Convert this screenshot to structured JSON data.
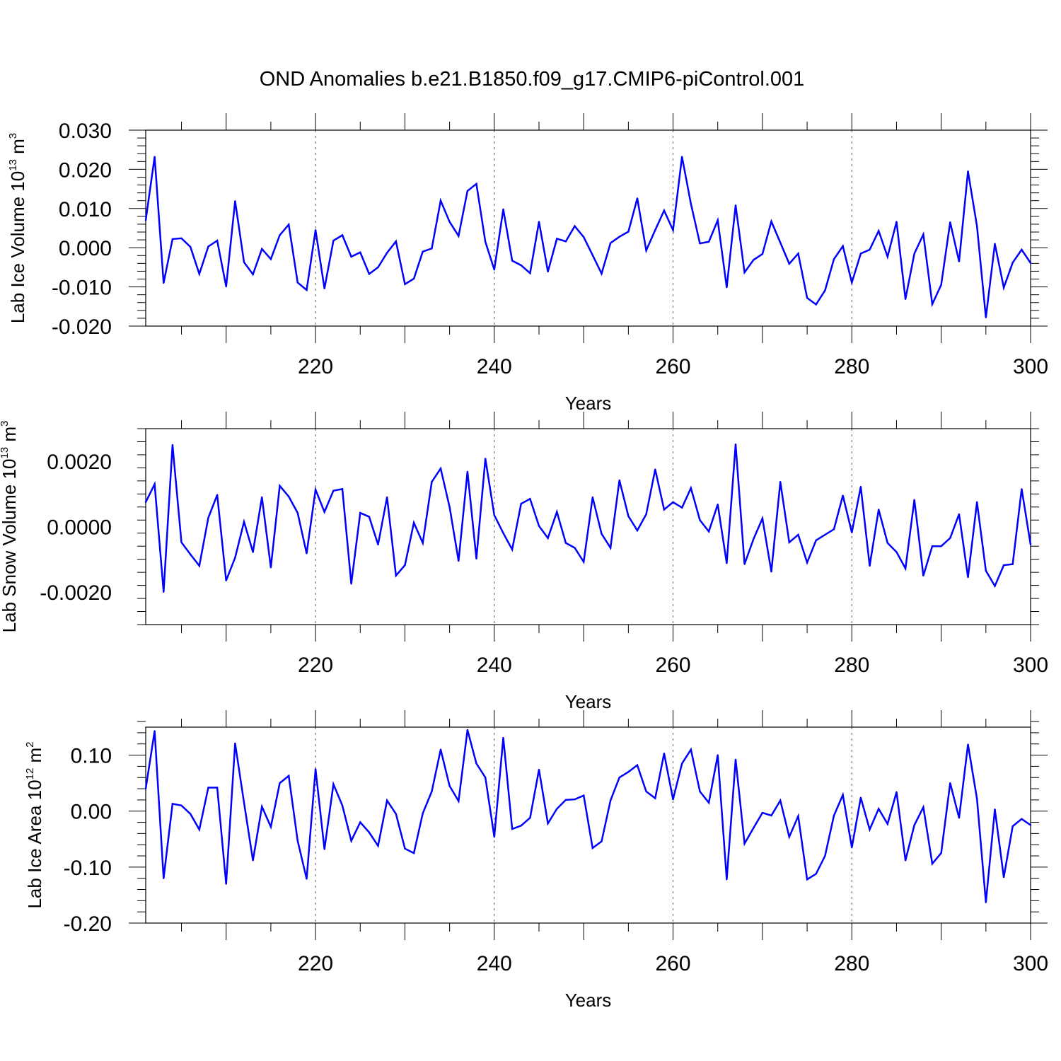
{
  "title": "OND Anomalies b.e21.B1850.f09_g17.CMIP6-piControl.001",
  "colors": {
    "line": "#0000ff",
    "axis": "#000000",
    "grid": "#555555"
  },
  "chart_data": [
    {
      "type": "line",
      "ylabel_main": "Lab Ice Volume 10",
      "ylabel_sup": "13",
      "ylabel_unit": "m",
      "ylabel_unit_sup": "3",
      "xlabel": "Years",
      "xlim": [
        201,
        300
      ],
      "ylim": [
        -0.02,
        0.03
      ],
      "xticks": [
        "220",
        "240",
        "260",
        "280",
        "300"
      ],
      "yticks": [
        "0.030",
        "0.020",
        "0.010",
        "0.000",
        "-0.010",
        "-0.020"
      ],
      "grid_x": [
        220,
        240,
        260,
        280
      ],
      "x_start": 201,
      "values": [
        0.007,
        0.0232,
        -0.009,
        0.0022,
        0.0024,
        0.0002,
        -0.0067,
        0.0003,
        0.0018,
        -0.0099,
        0.0119,
        -0.0037,
        -0.0068,
        -0.0003,
        -0.0029,
        0.0032,
        0.0059,
        -0.0089,
        -0.0108,
        0.0045,
        -0.0104,
        0.0018,
        0.0032,
        -0.0023,
        -0.0012,
        -0.0067,
        -0.005,
        -0.0013,
        0.0016,
        -0.0093,
        -0.0079,
        -0.001,
        -0.0002,
        0.012,
        0.0066,
        0.003,
        0.0145,
        0.0163,
        0.0015,
        -0.0056,
        0.0098,
        -0.0033,
        -0.0045,
        -0.0065,
        0.0066,
        -0.0061,
        0.0023,
        0.0016,
        0.0055,
        0.0027,
        -0.0019,
        -0.0066,
        0.0012,
        0.0028,
        0.0041,
        0.0126,
        -0.0007,
        0.0045,
        0.0095,
        0.0045,
        0.0232,
        0.0112,
        0.0011,
        0.0015,
        0.007,
        -0.0101,
        0.0108,
        -0.0063,
        -0.0031,
        -0.0016,
        0.0067,
        0.0013,
        -0.0041,
        -0.0015,
        -0.0128,
        -0.0145,
        -0.0109,
        -0.0029,
        0.0004,
        -0.0089,
        -0.0015,
        -0.0005,
        0.0043,
        -0.0023,
        0.0066,
        -0.0131,
        -0.0015,
        0.0034,
        -0.0144,
        -0.0095,
        0.0065,
        -0.0035,
        0.0195,
        0.0055,
        -0.0178,
        0.001,
        -0.0102,
        -0.0038,
        -0.0005,
        -0.0039
      ]
    },
    {
      "type": "line",
      "ylabel_main": "Lab Snow Volume 10",
      "ylabel_sup": "13",
      "ylabel_unit": "m",
      "ylabel_unit_sup": "3",
      "xlabel": "Years",
      "xlim": [
        201,
        300
      ],
      "ylim": [
        -0.003,
        0.003
      ],
      "xticks": [
        "220",
        "240",
        "260",
        "280",
        "300"
      ],
      "yticks": [
        "0.0020",
        "0.0000",
        "-0.0020"
      ],
      "grid_x": [
        220,
        240,
        260,
        280
      ],
      "x_start": 201,
      "values": [
        0.00075,
        0.0013,
        -0.002,
        0.0025,
        -0.00048,
        -0.00085,
        -0.0012,
        0.00027,
        0.00097,
        -0.00165,
        -0.00095,
        0.00015,
        -0.00078,
        0.0009,
        -0.00125,
        0.00125,
        0.00092,
        0.00042,
        -0.00082,
        0.00113,
        0.00045,
        0.0011,
        0.00115,
        -0.00175,
        0.00042,
        0.0003,
        -0.00055,
        0.0009,
        -0.0015,
        -0.00118,
        0.00012,
        -0.0005,
        0.00137,
        0.00178,
        0.0006,
        -0.00105,
        0.00168,
        -0.00098,
        0.00208,
        0.00035,
        -0.0002,
        -0.0007,
        0.0007,
        0.00085,
        2e-05,
        -0.00035,
        0.00045,
        -0.0005,
        -0.00065,
        -0.00108,
        0.0009,
        -0.00022,
        -0.00065,
        0.00142,
        0.00032,
        -0.00012,
        0.00038,
        0.00175,
        0.00052,
        0.00075,
        0.00058,
        0.00118,
        0.0002,
        -0.00015,
        0.00068,
        -0.00112,
        0.00252,
        -0.00115,
        -0.00038,
        0.00025,
        -0.00138,
        0.00137,
        -0.00048,
        -0.00025,
        -0.0011,
        -0.00042,
        -0.00025,
        -8e-05,
        0.00095,
        -0.00018,
        0.00122,
        -0.0012,
        0.00052,
        -0.0005,
        -0.00078,
        -0.00128,
        0.00082,
        -0.0015,
        -0.0006,
        -0.0006,
        -0.00035,
        0.00038,
        -0.00155,
        0.00075,
        -0.00135,
        -0.00182,
        -0.00118,
        -0.00115,
        0.00115,
        -0.00055
      ]
    },
    {
      "type": "line",
      "ylabel_main": "Lab Ice Area 10",
      "ylabel_sup": "12",
      "ylabel_unit": "m",
      "ylabel_unit_sup": "2",
      "xlabel": "Years",
      "xlim": [
        201,
        300
      ],
      "ylim": [
        -0.2,
        0.15
      ],
      "xticks": [
        "220",
        "240",
        "260",
        "280",
        "300"
      ],
      "yticks": [
        "0.10",
        "0.00",
        "-0.10",
        "-0.20"
      ],
      "grid_x": [
        220,
        240,
        260,
        280
      ],
      "x_start": 201,
      "values": [
        0.04,
        0.143,
        -0.12,
        0.013,
        0.01,
        -0.005,
        -0.033,
        0.042,
        0.042,
        -0.13,
        0.121,
        0.015,
        -0.088,
        0.008,
        -0.028,
        0.05,
        0.063,
        -0.053,
        -0.121,
        0.075,
        -0.068,
        0.048,
        0.01,
        -0.053,
        -0.02,
        -0.038,
        -0.062,
        0.019,
        -0.005,
        -0.067,
        -0.075,
        -0.004,
        0.035,
        0.11,
        0.045,
        0.018,
        0.145,
        0.085,
        0.06,
        -0.046,
        0.131,
        -0.032,
        -0.026,
        -0.012,
        0.074,
        -0.022,
        0.004,
        0.02,
        0.021,
        0.028,
        -0.066,
        -0.054,
        0.019,
        0.06,
        0.07,
        0.082,
        0.035,
        0.023,
        0.103,
        0.021,
        0.085,
        0.11,
        0.035,
        0.015,
        0.1,
        -0.122,
        0.092,
        -0.058,
        -0.03,
        -0.003,
        -0.008,
        0.019,
        -0.046,
        -0.009,
        -0.122,
        -0.112,
        -0.08,
        -0.008,
        0.029,
        -0.065,
        0.024,
        -0.033,
        0.004,
        -0.023,
        0.034,
        -0.088,
        -0.025,
        0.007,
        -0.094,
        -0.075,
        0.05,
        -0.012,
        0.119,
        0.022,
        -0.163,
        0.003,
        -0.118,
        -0.027,
        -0.014,
        -0.025
      ]
    }
  ]
}
